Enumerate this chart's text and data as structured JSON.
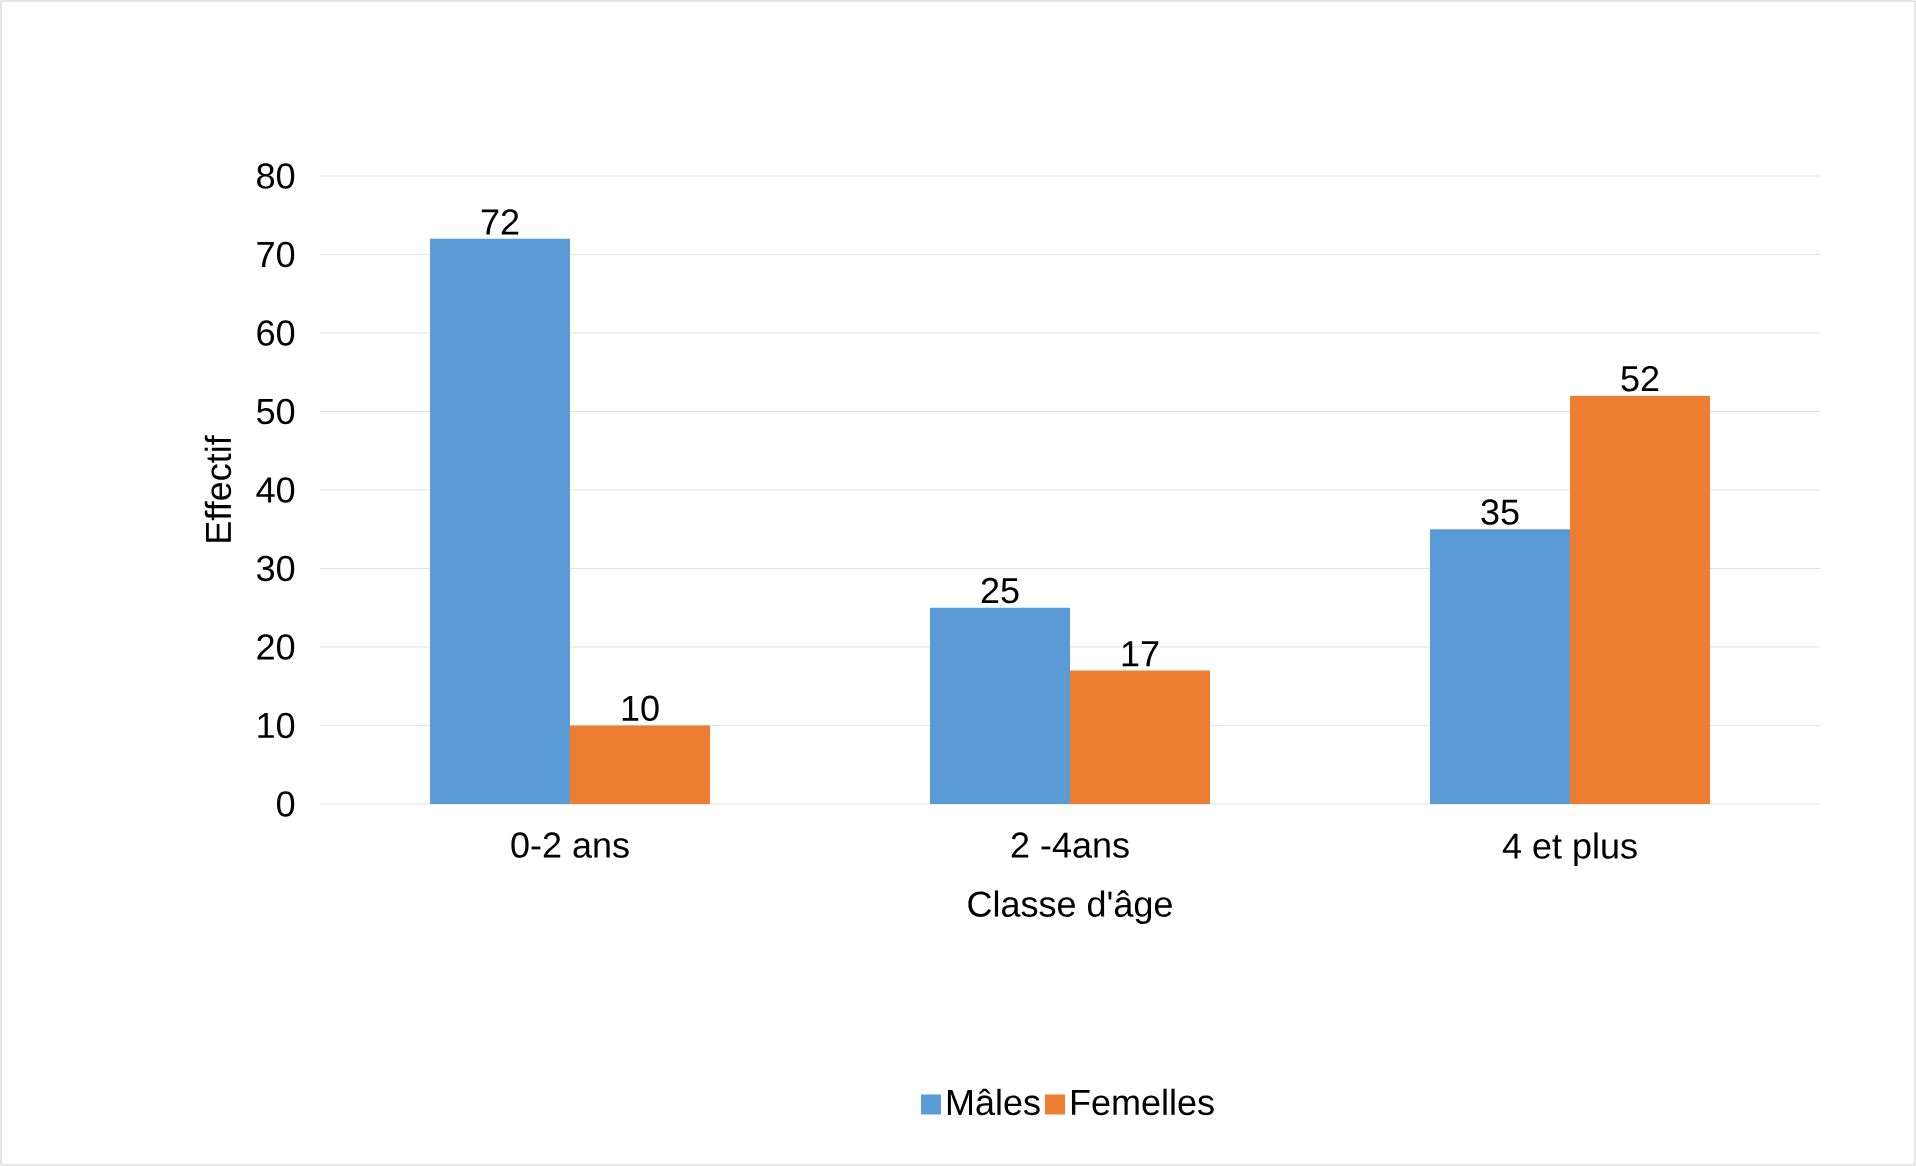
{
  "chart_data": {
    "type": "bar",
    "xlabel": "Classe d'âge",
    "ylabel": "Effectif",
    "categories": [
      "0-2 ans",
      "2 -4ans",
      "4 et plus"
    ],
    "series": [
      {
        "name": "Mâles",
        "color": "#5b9bd5",
        "values": [
          72,
          25,
          35
        ]
      },
      {
        "name": "Femelles",
        "color": "#ed7d31",
        "values": [
          10,
          17,
          52
        ]
      }
    ],
    "ylim": [
      0,
      80
    ],
    "yticks": [
      0,
      10,
      20,
      30,
      40,
      50,
      60,
      70,
      80
    ],
    "grid": "y",
    "legend": "bottom",
    "data_labels": true
  }
}
